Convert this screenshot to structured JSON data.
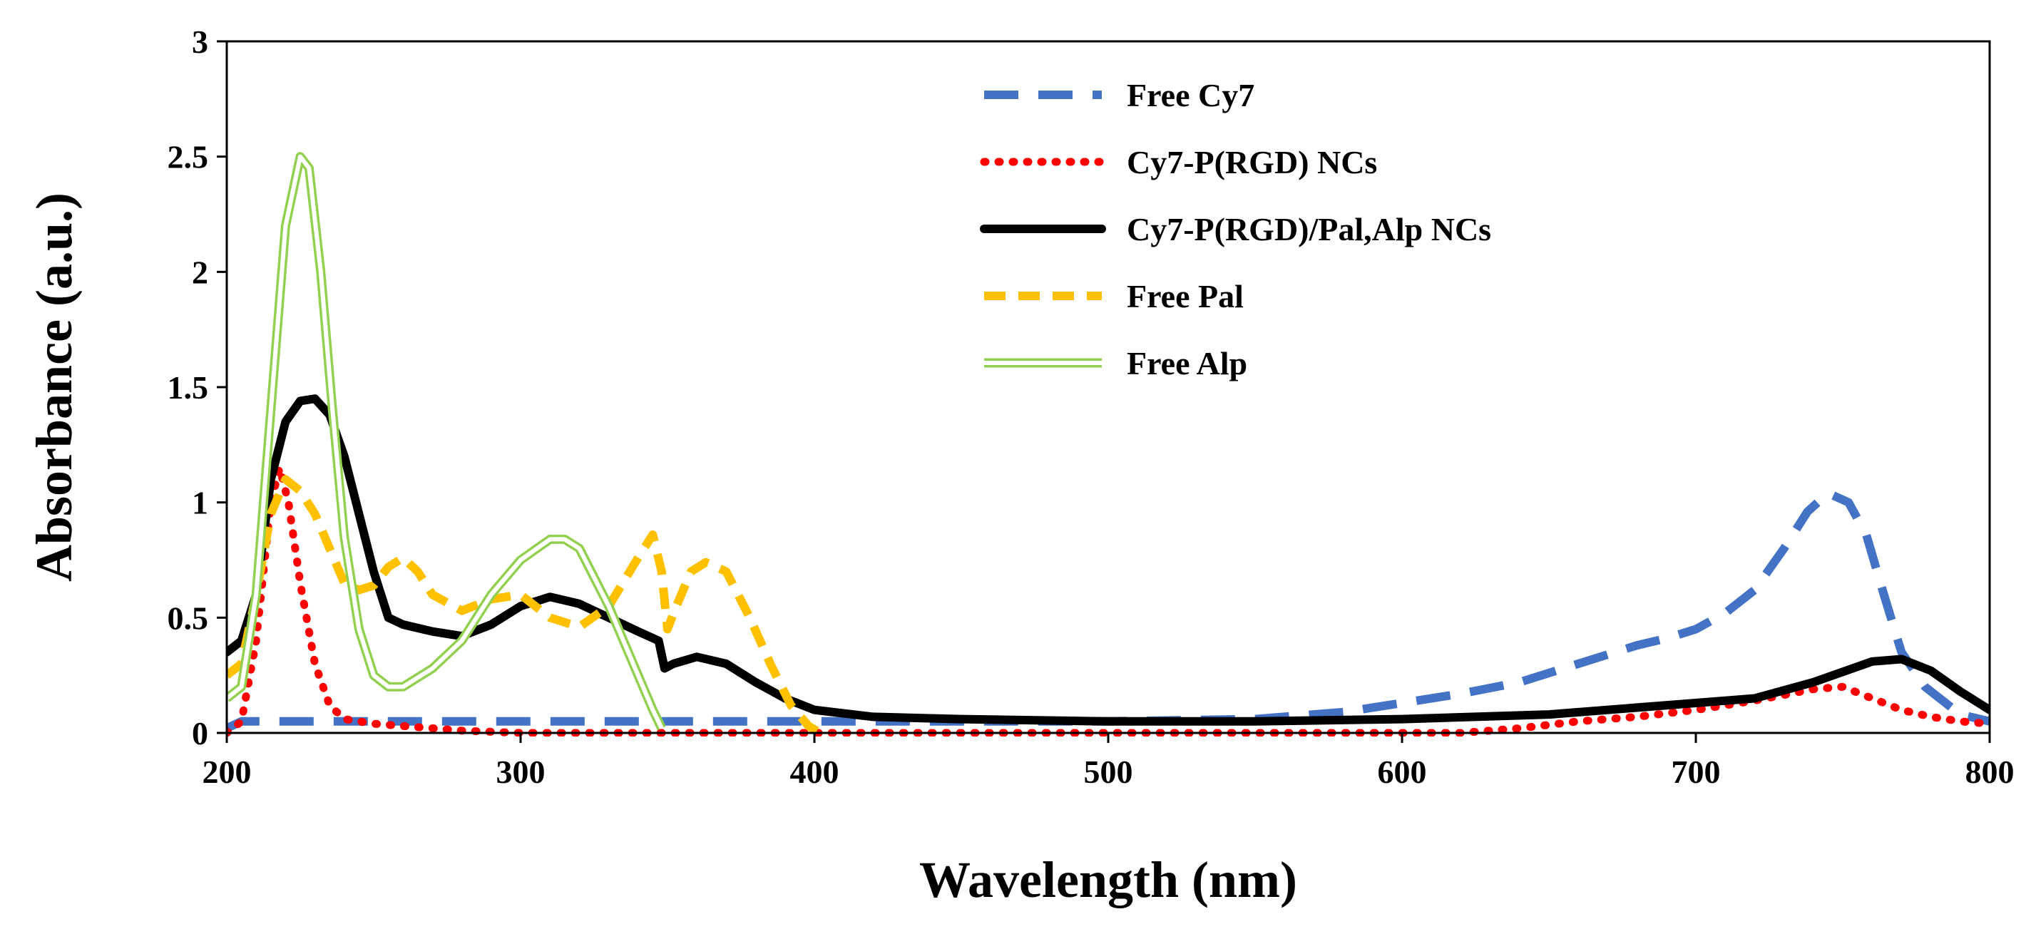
{
  "chart_data": {
    "type": "line",
    "title": "",
    "xlabel": "Wavelength  (nm)",
    "ylabel": "Absorbance  (a.u.)",
    "xlim": [
      200,
      800
    ],
    "ylim": [
      0,
      3
    ],
    "xticks": [
      200,
      300,
      400,
      500,
      600,
      700,
      800
    ],
    "xtick_labels": [
      "200",
      "300",
      "400",
      "500",
      "600",
      "700",
      "800"
    ],
    "yticks": [
      0,
      0.5,
      1,
      1.5,
      2,
      2.5,
      3
    ],
    "ytick_labels": [
      "0",
      "0.5",
      "1",
      "1.5",
      "2",
      "2.5",
      "3"
    ],
    "grid": false,
    "legend_position": "top-center",
    "series": [
      {
        "name": "Free Cy7",
        "style": "long-dash",
        "color": "#4472C4",
        "points": [
          [
            200,
            0.02
          ],
          [
            205,
            0.05
          ],
          [
            210,
            0.05
          ],
          [
            220,
            0.05
          ],
          [
            230,
            0.05
          ],
          [
            250,
            0.05
          ],
          [
            300,
            0.05
          ],
          [
            350,
            0.05
          ],
          [
            400,
            0.05
          ],
          [
            450,
            0.05
          ],
          [
            500,
            0.05
          ],
          [
            550,
            0.06
          ],
          [
            580,
            0.09
          ],
          [
            600,
            0.13
          ],
          [
            620,
            0.17
          ],
          [
            640,
            0.22
          ],
          [
            660,
            0.3
          ],
          [
            680,
            0.38
          ],
          [
            690,
            0.41
          ],
          [
            700,
            0.45
          ],
          [
            710,
            0.52
          ],
          [
            720,
            0.62
          ],
          [
            730,
            0.8
          ],
          [
            738,
            0.96
          ],
          [
            745,
            1.04
          ],
          [
            752,
            1.0
          ],
          [
            758,
            0.86
          ],
          [
            764,
            0.6
          ],
          [
            770,
            0.35
          ],
          [
            778,
            0.2
          ],
          [
            790,
            0.08
          ],
          [
            800,
            0.05
          ]
        ]
      },
      {
        "name": "Cy7-P(RGD) NCs",
        "style": "dotted",
        "color": "#FF0000",
        "points": [
          [
            200,
            0.0
          ],
          [
            205,
            0.05
          ],
          [
            210,
            0.4
          ],
          [
            215,
            1.0
          ],
          [
            218,
            1.15
          ],
          [
            221,
            1.0
          ],
          [
            225,
            0.65
          ],
          [
            230,
            0.3
          ],
          [
            235,
            0.12
          ],
          [
            240,
            0.06
          ],
          [
            250,
            0.04
          ],
          [
            260,
            0.03
          ],
          [
            270,
            0.02
          ],
          [
            280,
            0.01
          ],
          [
            300,
            0.0
          ],
          [
            620,
            0.0
          ],
          [
            640,
            0.02
          ],
          [
            660,
            0.05
          ],
          [
            680,
            0.07
          ],
          [
            700,
            0.1
          ],
          [
            720,
            0.14
          ],
          [
            740,
            0.19
          ],
          [
            750,
            0.2
          ],
          [
            760,
            0.15
          ],
          [
            770,
            0.1
          ],
          [
            780,
            0.07
          ],
          [
            790,
            0.05
          ],
          [
            800,
            0.04
          ]
        ]
      },
      {
        "name": "Cy7-P(RGD)/Pal,Alp NCs",
        "style": "solid",
        "color": "#000000",
        "points": [
          [
            200,
            0.35
          ],
          [
            205,
            0.4
          ],
          [
            210,
            0.6
          ],
          [
            215,
            1.1
          ],
          [
            220,
            1.35
          ],
          [
            225,
            1.44
          ],
          [
            230,
            1.45
          ],
          [
            235,
            1.38
          ],
          [
            240,
            1.2
          ],
          [
            245,
            0.95
          ],
          [
            250,
            0.7
          ],
          [
            255,
            0.5
          ],
          [
            260,
            0.47
          ],
          [
            270,
            0.44
          ],
          [
            280,
            0.42
          ],
          [
            290,
            0.47
          ],
          [
            300,
            0.55
          ],
          [
            310,
            0.59
          ],
          [
            320,
            0.56
          ],
          [
            330,
            0.5
          ],
          [
            340,
            0.44
          ],
          [
            347,
            0.4
          ],
          [
            349,
            0.28
          ],
          [
            352,
            0.3
          ],
          [
            360,
            0.33
          ],
          [
            370,
            0.3
          ],
          [
            380,
            0.22
          ],
          [
            390,
            0.15
          ],
          [
            400,
            0.1
          ],
          [
            420,
            0.07
          ],
          [
            450,
            0.06
          ],
          [
            500,
            0.05
          ],
          [
            550,
            0.05
          ],
          [
            600,
            0.06
          ],
          [
            650,
            0.08
          ],
          [
            700,
            0.13
          ],
          [
            720,
            0.15
          ],
          [
            740,
            0.22
          ],
          [
            760,
            0.31
          ],
          [
            770,
            0.32
          ],
          [
            780,
            0.27
          ],
          [
            790,
            0.18
          ],
          [
            800,
            0.1
          ]
        ]
      },
      {
        "name": "Free Pal",
        "style": "dash",
        "color": "#FFC000",
        "points": [
          [
            200,
            0.25
          ],
          [
            205,
            0.3
          ],
          [
            210,
            0.6
          ],
          [
            215,
            0.95
          ],
          [
            220,
            1.1
          ],
          [
            225,
            1.05
          ],
          [
            230,
            0.95
          ],
          [
            235,
            0.8
          ],
          [
            240,
            0.65
          ],
          [
            245,
            0.62
          ],
          [
            250,
            0.64
          ],
          [
            255,
            0.72
          ],
          [
            260,
            0.76
          ],
          [
            265,
            0.7
          ],
          [
            270,
            0.6
          ],
          [
            280,
            0.53
          ],
          [
            290,
            0.58
          ],
          [
            300,
            0.6
          ],
          [
            305,
            0.55
          ],
          [
            310,
            0.5
          ],
          [
            320,
            0.46
          ],
          [
            330,
            0.55
          ],
          [
            340,
            0.76
          ],
          [
            345,
            0.86
          ],
          [
            348,
            0.7
          ],
          [
            350,
            0.45
          ],
          [
            353,
            0.55
          ],
          [
            358,
            0.7
          ],
          [
            363,
            0.74
          ],
          [
            370,
            0.7
          ],
          [
            378,
            0.5
          ],
          [
            385,
            0.3
          ],
          [
            392,
            0.12
          ],
          [
            398,
            0.03
          ],
          [
            402,
            0.0
          ]
        ]
      },
      {
        "name": "Free Alp",
        "style": "double",
        "color": "#92D050",
        "points": [
          [
            200,
            0.15
          ],
          [
            205,
            0.2
          ],
          [
            210,
            0.6
          ],
          [
            215,
            1.4
          ],
          [
            220,
            2.2
          ],
          [
            225,
            2.5
          ],
          [
            228,
            2.45
          ],
          [
            232,
            2.0
          ],
          [
            236,
            1.4
          ],
          [
            240,
            0.85
          ],
          [
            245,
            0.45
          ],
          [
            250,
            0.25
          ],
          [
            255,
            0.2
          ],
          [
            260,
            0.2
          ],
          [
            270,
            0.28
          ],
          [
            280,
            0.4
          ],
          [
            290,
            0.6
          ],
          [
            300,
            0.75
          ],
          [
            310,
            0.84
          ],
          [
            315,
            0.84
          ],
          [
            320,
            0.8
          ],
          [
            330,
            0.55
          ],
          [
            340,
            0.25
          ],
          [
            345,
            0.1
          ],
          [
            348,
            0.02
          ]
        ]
      }
    ]
  }
}
